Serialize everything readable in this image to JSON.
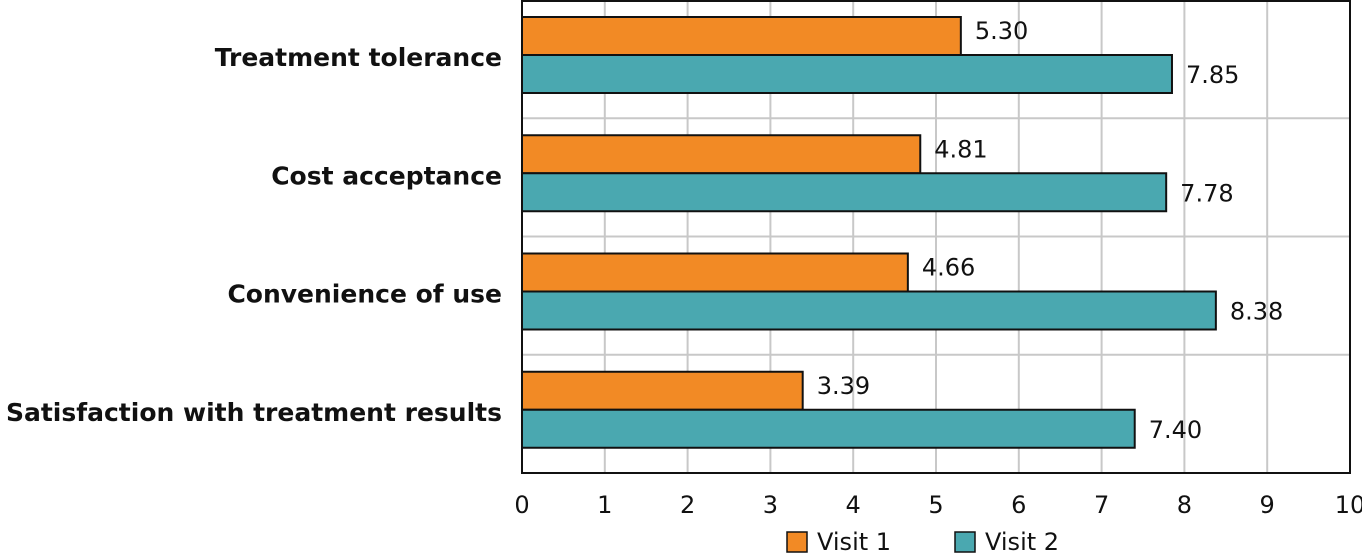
{
  "chart_data": {
    "type": "barh",
    "categories": [
      "Treatment tolerance",
      "Cost acceptance",
      "Convenience of use",
      "Satisfaction with treatment results"
    ],
    "series": [
      {
        "name": "Visit 1",
        "color": "#f28a25",
        "values": [
          5.3,
          4.81,
          4.66,
          3.39
        ],
        "value_labels": [
          "5.30",
          "4.81",
          "4.66",
          "3.39"
        ]
      },
      {
        "name": "Visit 2",
        "color": "#4aa8b0",
        "values": [
          7.85,
          7.78,
          8.38,
          7.4
        ],
        "value_labels": [
          "7.85",
          "7.78",
          "8.38",
          "7.40"
        ]
      }
    ],
    "xlim": [
      0,
      10
    ],
    "xticks": [
      0,
      1,
      2,
      3,
      4,
      5,
      6,
      7,
      8,
      9,
      10
    ],
    "grid": true,
    "legend": "bottom"
  }
}
